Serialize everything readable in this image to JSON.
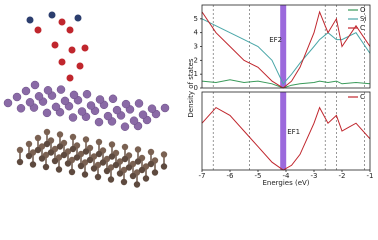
{
  "chart_data": [
    {
      "type": "line",
      "y_label": "Density of states",
      "annotation": "EF2",
      "x": [
        -7,
        -6.5,
        -6,
        -5.5,
        -5,
        -4.5,
        -4.1,
        -3.8,
        -3.5,
        -3,
        -2.8,
        -2.5,
        -2.2,
        -2,
        -1.5,
        -1
      ],
      "xlim": [
        -7,
        -1
      ],
      "ylim": [
        0,
        6
      ],
      "yticks": [
        0,
        1,
        2,
        3,
        4,
        5
      ],
      "vlines": [
        -6.6,
        -5.3,
        -2.6,
        -2.2,
        -1.2
      ],
      "fermi": -4.1,
      "fermi_color": "#8a4fd6",
      "legend": "upper right",
      "series": [
        {
          "name": "O",
          "color": "#3a9a5a",
          "values": [
            0.5,
            0.4,
            0.6,
            0.4,
            0.5,
            0.3,
            0,
            0.2,
            0.3,
            0.4,
            0.5,
            0.4,
            0.5,
            0.3,
            0.4,
            0.3
          ]
        },
        {
          "name": "Si",
          "color": "#4aa7a8",
          "values": [
            5,
            4.5,
            4,
            3.5,
            3,
            2,
            0.3,
            1,
            1.8,
            3,
            3.5,
            4,
            3.5,
            3.5,
            4,
            2.5
          ]
        },
        {
          "name": "C",
          "color": "#c0262d",
          "values": [
            5.5,
            4,
            3,
            2,
            1.5,
            0.5,
            0,
            0.5,
            1.5,
            4,
            5.5,
            4,
            5,
            3,
            4.5,
            3
          ]
        }
      ]
    },
    {
      "type": "line",
      "x_label": "Energies (eV)",
      "annotation": "EF1",
      "x": [
        -7,
        -6.5,
        -6,
        -5.5,
        -5,
        -4.5,
        -4.1,
        -3.8,
        -3.5,
        -3,
        -2.8,
        -2.5,
        -2.2,
        -2,
        -1.5,
        -1
      ],
      "xlim": [
        -7,
        -1
      ],
      "xticks": [
        -7,
        -6,
        -5,
        -4,
        -3,
        -2,
        -1
      ],
      "ylim": [
        0,
        5
      ],
      "vlines": [
        -6.6,
        -5.3,
        -2.6,
        -2.2,
        -1.2
      ],
      "fermi": -4.1,
      "fermi_color": "#8a4fd6",
      "legend": "upper right",
      "series": [
        {
          "name": "C",
          "color": "#c0262d",
          "values": [
            3,
            4,
            3.5,
            2.5,
            1.5,
            0.5,
            0,
            0.3,
            1,
            3,
            4,
            3,
            3.5,
            2.5,
            3,
            2
          ]
        }
      ]
    }
  ]
}
